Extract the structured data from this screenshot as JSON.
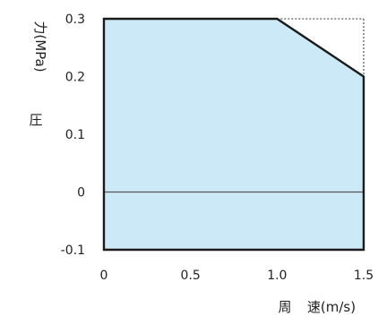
{
  "chart_data": {
    "type": "area",
    "ylabel": "圧　力(MPa)",
    "xlabel": "周　速(m/s)",
    "xlim": [
      0,
      1.5
    ],
    "ylim": [
      -0.1,
      0.3
    ],
    "x_ticks": [
      "0",
      "0.5",
      "1.0",
      "1.5"
    ],
    "y_ticks": [
      "-0.1",
      "0",
      "0.1",
      "0.2",
      "0.3"
    ],
    "grid": true,
    "zero_line": true,
    "corner_guide": true,
    "region_points": [
      {
        "x": 0,
        "y": -0.1
      },
      {
        "x": 0,
        "y": 0.3
      },
      {
        "x": 1.0,
        "y": 0.3
      },
      {
        "x": 1.5,
        "y": 0.2
      },
      {
        "x": 1.5,
        "y": -0.1
      }
    ],
    "fill_color": "#cce9f7",
    "outline_color": "#1a1a1a",
    "grid_color": "#333333"
  }
}
